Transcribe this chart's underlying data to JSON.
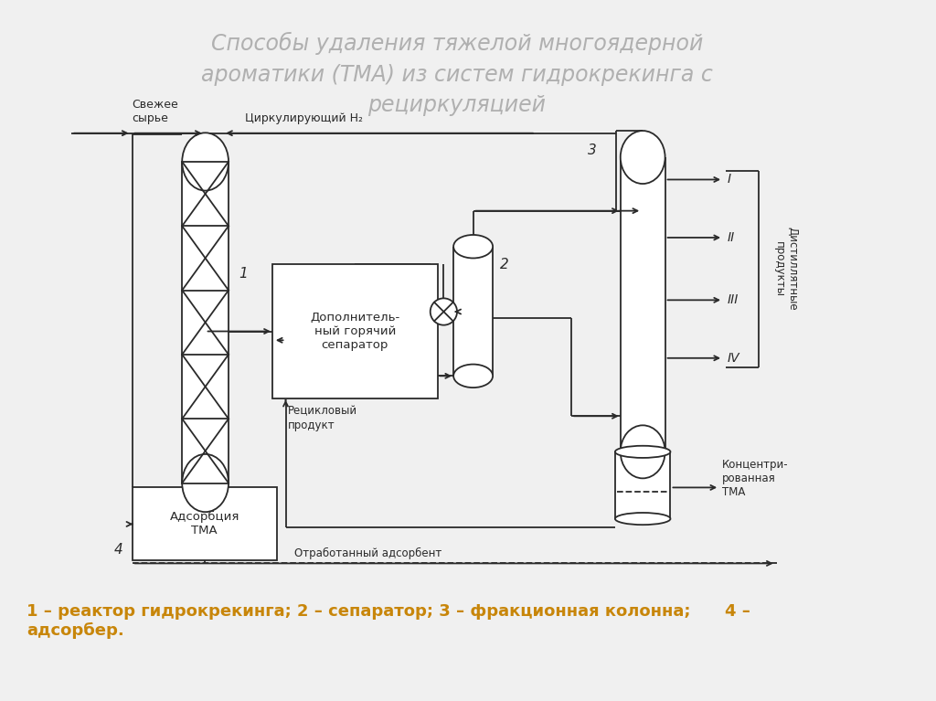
{
  "title_line1": "Способы удаления тяжелой многоядерной",
  "title_line2": "ароматики (ТМА) из систем гидрокрекинга с",
  "title_line3": "рециркуляцией",
  "caption": "1 – реактор гидрокрекинга; 2 – сепаратор; 3 – фракционная колонна;      4 –\nадсорбер.",
  "title_color": "#b0b0b0",
  "caption_color": "#c8860a",
  "bg_color": "#f0f0f0",
  "diagram_color": "#2a2a2a",
  "label_svezhe": "Свежее\nсырье",
  "label_cirk": "Циркулирующий H₂",
  "label_dop": "Дополнитель-\nный горячий\nсепаратор",
  "label_adsorbciya": "Адсорбция\nТМА",
  "label_recikl": "Рецикловый\nпродукт",
  "label_otrab": "Отработанный адсорбент",
  "label_konc": "Концентри-\nрованная\nТМА",
  "label_distil": "Дистиллятные\nпродукты",
  "label_I": "I",
  "label_II": "II",
  "label_III": "III",
  "label_IV": "IV",
  "label_1": "1",
  "label_2": "2",
  "label_3": "3",
  "label_4": "4"
}
